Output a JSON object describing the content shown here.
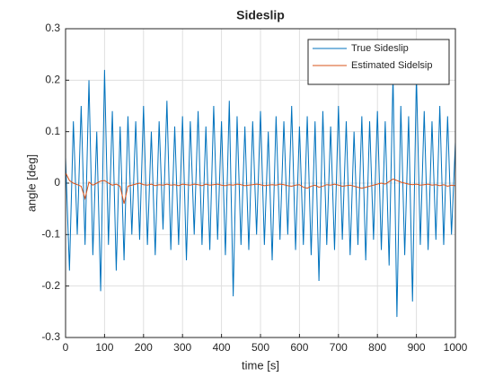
{
  "chart_data": {
    "type": "line",
    "title": "Sideslip",
    "xlabel": "time [s]",
    "ylabel": "angle [deg]",
    "x": [
      0,
      10,
      20,
      30,
      40,
      50,
      60,
      70,
      80,
      90,
      100,
      110,
      120,
      130,
      140,
      150,
      160,
      170,
      180,
      190,
      200,
      210,
      220,
      230,
      240,
      250,
      260,
      270,
      280,
      290,
      300,
      310,
      320,
      330,
      340,
      350,
      360,
      370,
      380,
      390,
      400,
      410,
      420,
      430,
      440,
      450,
      460,
      470,
      480,
      490,
      500,
      510,
      520,
      530,
      540,
      550,
      560,
      570,
      580,
      590,
      600,
      610,
      620,
      630,
      640,
      650,
      660,
      670,
      680,
      690,
      700,
      710,
      720,
      730,
      740,
      750,
      760,
      770,
      780,
      790,
      800,
      810,
      820,
      830,
      840,
      850,
      860,
      870,
      880,
      890,
      900,
      910,
      920,
      930,
      940,
      950,
      960,
      970,
      980,
      990,
      1000
    ],
    "series": [
      {
        "name": "True Sideslip",
        "color": "#0072bd",
        "values": [
          0.05,
          -0.17,
          0.12,
          -0.1,
          0.15,
          -0.12,
          0.2,
          -0.14,
          0.1,
          -0.21,
          0.22,
          -0.12,
          0.14,
          -0.17,
          0.11,
          -0.15,
          0.13,
          -0.1,
          0.12,
          -0.11,
          0.15,
          -0.12,
          0.1,
          -0.14,
          0.12,
          -0.09,
          0.16,
          -0.13,
          0.11,
          -0.12,
          0.13,
          -0.15,
          0.12,
          -0.1,
          0.14,
          -0.12,
          0.11,
          -0.13,
          0.15,
          -0.11,
          0.12,
          -0.14,
          0.16,
          -0.22,
          0.13,
          -0.12,
          0.11,
          -0.13,
          0.12,
          -0.1,
          0.14,
          -0.12,
          0.1,
          -0.15,
          0.13,
          -0.11,
          0.12,
          -0.1,
          0.15,
          -0.13,
          0.11,
          -0.12,
          0.13,
          -0.14,
          0.12,
          -0.19,
          0.14,
          -0.12,
          0.11,
          -0.13,
          0.15,
          -0.11,
          0.12,
          -0.14,
          0.1,
          -0.12,
          0.13,
          -0.15,
          0.12,
          -0.11,
          0.14,
          -0.13,
          0.12,
          -0.16,
          0.21,
          -0.26,
          0.15,
          -0.14,
          0.13,
          -0.23,
          0.21,
          -0.12,
          0.14,
          -0.13,
          0.12,
          -0.11,
          0.15,
          -0.12,
          0.13,
          -0.1,
          0.08
        ]
      },
      {
        "name": "Estimated Sidelsip",
        "color": "#d95319",
        "values": [
          0.02,
          0.005,
          0,
          -0.003,
          -0.006,
          -0.03,
          0.002,
          -0.004,
          0,
          0.004,
          0.005,
          0,
          -0.004,
          -0.002,
          -0.006,
          -0.04,
          -0.006,
          -0.004,
          -0.002,
          0,
          -0.003,
          -0.004,
          -0.002,
          -0.005,
          -0.003,
          -0.004,
          -0.002,
          -0.004,
          -0.003,
          -0.005,
          -0.002,
          -0.003,
          -0.004,
          -0.002,
          -0.003,
          -0.005,
          -0.002,
          -0.004,
          -0.003,
          -0.002,
          -0.004,
          -0.005,
          -0.003,
          -0.004,
          -0.002,
          -0.003,
          -0.005,
          -0.004,
          -0.003,
          -0.002,
          -0.003,
          -0.005,
          -0.004,
          -0.003,
          -0.004,
          -0.002,
          -0.003,
          -0.005,
          -0.006,
          -0.004,
          -0.003,
          -0.008,
          -0.01,
          -0.006,
          -0.004,
          -0.008,
          -0.006,
          -0.003,
          -0.004,
          -0.002,
          -0.004,
          -0.006,
          -0.005,
          -0.004,
          -0.006,
          -0.008,
          -0.01,
          -0.008,
          -0.006,
          -0.004,
          -0.002,
          0,
          -0.002,
          0.003,
          0.008,
          0.005,
          0.002,
          0,
          -0.002,
          -0.003,
          -0.002,
          -0.004,
          -0.003,
          -0.002,
          -0.004,
          -0.003,
          -0.005,
          -0.003,
          -0.006,
          -0.004,
          -0.005
        ]
      }
    ],
    "xlim": [
      0,
      1000
    ],
    "xticks": [
      0,
      100,
      200,
      300,
      400,
      500,
      600,
      700,
      800,
      900,
      1000
    ],
    "ylim": [
      -0.3,
      0.3
    ],
    "yticks": [
      -0.3,
      -0.2,
      -0.1,
      0,
      0.1,
      0.2,
      0.3
    ],
    "grid": true,
    "legend": "northeast"
  }
}
